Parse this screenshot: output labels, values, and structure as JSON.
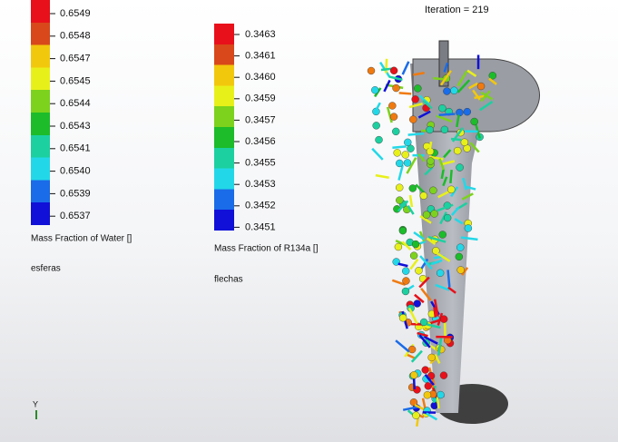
{
  "status": {
    "iteration": "Iteration = 219"
  },
  "legends": [
    {
      "labels": [
        "0.6549",
        "0.6548",
        "0.6547",
        "0.6545",
        "0.6544",
        "0.6543",
        "0.6541",
        "0.6540",
        "0.6539",
        "0.6537"
      ],
      "title": "Mass Fraction of Water []",
      "subtitle": "esferas"
    },
    {
      "labels": [
        "0.3463",
        "0.3461",
        "0.3460",
        "0.3459",
        "0.3457",
        "0.3456",
        "0.3455",
        "0.3453",
        "0.3452",
        "0.3451"
      ],
      "title": "Mass Fraction of R134a []",
      "subtitle": "flechas"
    }
  ],
  "axis": {
    "label": "Y"
  }
}
